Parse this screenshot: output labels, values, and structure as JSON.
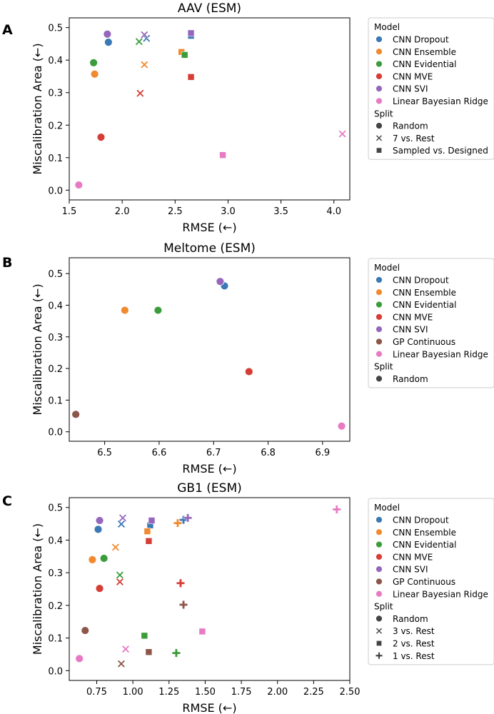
{
  "colors": {
    "CNN Dropout": "#3a78b6",
    "CNN Ensemble": "#f08a2f",
    "CNN Evidential": "#3b9c3b",
    "CNN MVE": "#d63d35",
    "CNN SVI": "#9467bd",
    "GP Continuous": "#8c564b",
    "Linear Bayesian Ridge": "#e87ac3",
    "split_marker": "#444444"
  },
  "chart_data": [
    {
      "type": "scatter",
      "panel_letter": "A",
      "title": "AAV (ESM)",
      "xlabel": "RMSE (←)",
      "ylabel": "Miscalibration Area (←)",
      "xlim": [
        1.5,
        4.15
      ],
      "ylim": [
        -0.03,
        0.53
      ],
      "xticks": [
        1.5,
        2.0,
        2.5,
        3.0,
        3.5,
        4.0
      ],
      "xtick_labels": [
        "1.5",
        "2.0",
        "2.5",
        "3.0",
        "3.5",
        "4.0"
      ],
      "yticks": [
        0.0,
        0.1,
        0.2,
        0.3,
        0.4,
        0.5
      ],
      "ytick_labels": [
        "0.0",
        "0.1",
        "0.2",
        "0.3",
        "0.4",
        "0.5"
      ],
      "legend": {
        "model_title": "Model",
        "models": [
          "CNN Dropout",
          "CNN Ensemble",
          "CNN Evidential",
          "CNN MVE",
          "CNN SVI",
          "Linear Bayesian Ridge"
        ],
        "split_title": "Split",
        "splits": [
          {
            "label": "Random",
            "marker": "circle"
          },
          {
            "label": "7 vs. Rest",
            "marker": "x"
          },
          {
            "label": "Sampled vs. Designed",
            "marker": "square"
          }
        ]
      },
      "points": [
        {
          "model": "CNN Dropout",
          "marker": "circle",
          "x": 1.87,
          "y": 0.455
        },
        {
          "model": "CNN Ensemble",
          "marker": "circle",
          "x": 1.74,
          "y": 0.357
        },
        {
          "model": "CNN Evidential",
          "marker": "circle",
          "x": 1.73,
          "y": 0.392
        },
        {
          "model": "CNN MVE",
          "marker": "circle",
          "x": 1.8,
          "y": 0.163
        },
        {
          "model": "CNN SVI",
          "marker": "circle",
          "x": 1.86,
          "y": 0.48
        },
        {
          "model": "Linear Bayesian Ridge",
          "marker": "circle",
          "x": 1.59,
          "y": 0.016
        },
        {
          "model": "CNN Dropout",
          "marker": "x",
          "x": 2.23,
          "y": 0.467
        },
        {
          "model": "CNN Ensemble",
          "marker": "x",
          "x": 2.21,
          "y": 0.386
        },
        {
          "model": "CNN Evidential",
          "marker": "x",
          "x": 2.16,
          "y": 0.457
        },
        {
          "model": "CNN MVE",
          "marker": "x",
          "x": 2.17,
          "y": 0.298
        },
        {
          "model": "CNN SVI",
          "marker": "x",
          "x": 2.21,
          "y": 0.478
        },
        {
          "model": "Linear Bayesian Ridge",
          "marker": "x",
          "x": 4.08,
          "y": 0.173
        },
        {
          "model": "CNN Dropout",
          "marker": "square",
          "x": 2.65,
          "y": 0.475
        },
        {
          "model": "CNN Ensemble",
          "marker": "square",
          "x": 2.56,
          "y": 0.425
        },
        {
          "model": "CNN Evidential",
          "marker": "square",
          "x": 2.59,
          "y": 0.416
        },
        {
          "model": "CNN MVE",
          "marker": "square",
          "x": 2.65,
          "y": 0.348
        },
        {
          "model": "CNN SVI",
          "marker": "square",
          "x": 2.65,
          "y": 0.483
        },
        {
          "model": "Linear Bayesian Ridge",
          "marker": "square",
          "x": 2.95,
          "y": 0.108
        }
      ]
    },
    {
      "type": "scatter",
      "panel_letter": "B",
      "title": "Meltome (ESM)",
      "xlabel": "RMSE (←)",
      "ylabel": "Miscalibration Area (←)",
      "xlim": [
        6.435,
        6.95
      ],
      "ylim": [
        -0.03,
        0.55
      ],
      "xticks": [
        6.5,
        6.6,
        6.7,
        6.8,
        6.9
      ],
      "xtick_labels": [
        "6.5",
        "6.6",
        "6.7",
        "6.8",
        "6.9"
      ],
      "yticks": [
        0.0,
        0.1,
        0.2,
        0.3,
        0.4,
        0.5
      ],
      "ytick_labels": [
        "0.0",
        "0.1",
        "0.2",
        "0.3",
        "0.4",
        "0.5"
      ],
      "legend": {
        "model_title": "Model",
        "models": [
          "CNN Dropout",
          "CNN Ensemble",
          "CNN Evidential",
          "CNN MVE",
          "CNN SVI",
          "GP Continuous",
          "Linear Bayesian Ridge"
        ],
        "split_title": "Split",
        "splits": [
          {
            "label": "Random",
            "marker": "circle"
          }
        ]
      },
      "points": [
        {
          "model": "CNN Dropout",
          "marker": "circle",
          "x": 6.72,
          "y": 0.461
        },
        {
          "model": "CNN Ensemble",
          "marker": "circle",
          "x": 6.537,
          "y": 0.384
        },
        {
          "model": "CNN Evidential",
          "marker": "circle",
          "x": 6.598,
          "y": 0.384
        },
        {
          "model": "CNN MVE",
          "marker": "circle",
          "x": 6.765,
          "y": 0.19
        },
        {
          "model": "CNN SVI",
          "marker": "circle",
          "x": 6.712,
          "y": 0.475
        },
        {
          "model": "GP Continuous",
          "marker": "circle",
          "x": 6.447,
          "y": 0.055
        },
        {
          "model": "Linear Bayesian Ridge",
          "marker": "circle",
          "x": 6.935,
          "y": 0.018
        }
      ]
    },
    {
      "type": "scatter",
      "panel_letter": "C",
      "title": "GB1 (ESM)",
      "xlabel": "RMSE (←)",
      "ylabel": "Miscalibration Area (←)",
      "xlim": [
        0.56,
        2.5
      ],
      "ylim": [
        -0.03,
        0.53
      ],
      "xticks": [
        0.75,
        1.0,
        1.25,
        1.5,
        1.75,
        2.0,
        2.25,
        2.5
      ],
      "xtick_labels": [
        "0.75",
        "1.00",
        "1.25",
        "1.50",
        "1.75",
        "2.00",
        "2.25",
        "2.50"
      ],
      "yticks": [
        0.0,
        0.1,
        0.2,
        0.3,
        0.4,
        0.5
      ],
      "ytick_labels": [
        "0.0",
        "0.1",
        "0.2",
        "0.3",
        "0.4",
        "0.5"
      ],
      "legend": {
        "model_title": "Model",
        "models": [
          "CNN Dropout",
          "CNN Ensemble",
          "CNN Evidential",
          "CNN MVE",
          "CNN SVI",
          "GP Continuous",
          "Linear Bayesian Ridge"
        ],
        "split_title": "Split",
        "splits": [
          {
            "label": "Random",
            "marker": "circle"
          },
          {
            "label": "3 vs. Rest",
            "marker": "x"
          },
          {
            "label": "2 vs. Rest",
            "marker": "square"
          },
          {
            "label": "1 vs. Rest",
            "marker": "plus"
          }
        ]
      },
      "points": [
        {
          "model": "CNN Dropout",
          "marker": "circle",
          "x": 0.76,
          "y": 0.433
        },
        {
          "model": "CNN Ensemble",
          "marker": "circle",
          "x": 0.72,
          "y": 0.34
        },
        {
          "model": "CNN Evidential",
          "marker": "circle",
          "x": 0.8,
          "y": 0.344
        },
        {
          "model": "CNN MVE",
          "marker": "circle",
          "x": 0.77,
          "y": 0.252
        },
        {
          "model": "CNN SVI",
          "marker": "circle",
          "x": 0.77,
          "y": 0.46
        },
        {
          "model": "GP Continuous",
          "marker": "circle",
          "x": 0.67,
          "y": 0.123
        },
        {
          "model": "Linear Bayesian Ridge",
          "marker": "circle",
          "x": 0.63,
          "y": 0.037
        },
        {
          "model": "CNN Dropout",
          "marker": "x",
          "x": 0.92,
          "y": 0.449
        },
        {
          "model": "CNN Ensemble",
          "marker": "x",
          "x": 0.88,
          "y": 0.378
        },
        {
          "model": "CNN Evidential",
          "marker": "x",
          "x": 0.91,
          "y": 0.293
        },
        {
          "model": "CNN MVE",
          "marker": "x",
          "x": 0.91,
          "y": 0.272
        },
        {
          "model": "CNN SVI",
          "marker": "x",
          "x": 0.93,
          "y": 0.468
        },
        {
          "model": "GP Continuous",
          "marker": "x",
          "x": 0.92,
          "y": 0.021
        },
        {
          "model": "Linear Bayesian Ridge",
          "marker": "x",
          "x": 0.95,
          "y": 0.066
        },
        {
          "model": "CNN Dropout",
          "marker": "square",
          "x": 1.12,
          "y": 0.445
        },
        {
          "model": "CNN Ensemble",
          "marker": "square",
          "x": 1.1,
          "y": 0.427
        },
        {
          "model": "CNN Evidential",
          "marker": "square",
          "x": 1.08,
          "y": 0.107
        },
        {
          "model": "CNN MVE",
          "marker": "square",
          "x": 1.11,
          "y": 0.397
        },
        {
          "model": "CNN SVI",
          "marker": "square",
          "x": 1.13,
          "y": 0.46
        },
        {
          "model": "GP Continuous",
          "marker": "square",
          "x": 1.11,
          "y": 0.057
        },
        {
          "model": "Linear Bayesian Ridge",
          "marker": "square",
          "x": 1.48,
          "y": 0.12
        },
        {
          "model": "CNN Dropout",
          "marker": "plus",
          "x": 1.35,
          "y": 0.462
        },
        {
          "model": "CNN Ensemble",
          "marker": "plus",
          "x": 1.31,
          "y": 0.452
        },
        {
          "model": "CNN Evidential",
          "marker": "plus",
          "x": 1.3,
          "y": 0.054
        },
        {
          "model": "CNN MVE",
          "marker": "plus",
          "x": 1.33,
          "y": 0.268
        },
        {
          "model": "CNN SVI",
          "marker": "plus",
          "x": 1.38,
          "y": 0.468
        },
        {
          "model": "GP Continuous",
          "marker": "plus",
          "x": 1.35,
          "y": 0.202
        },
        {
          "model": "Linear Bayesian Ridge",
          "marker": "plus",
          "x": 2.41,
          "y": 0.494
        }
      ]
    }
  ]
}
